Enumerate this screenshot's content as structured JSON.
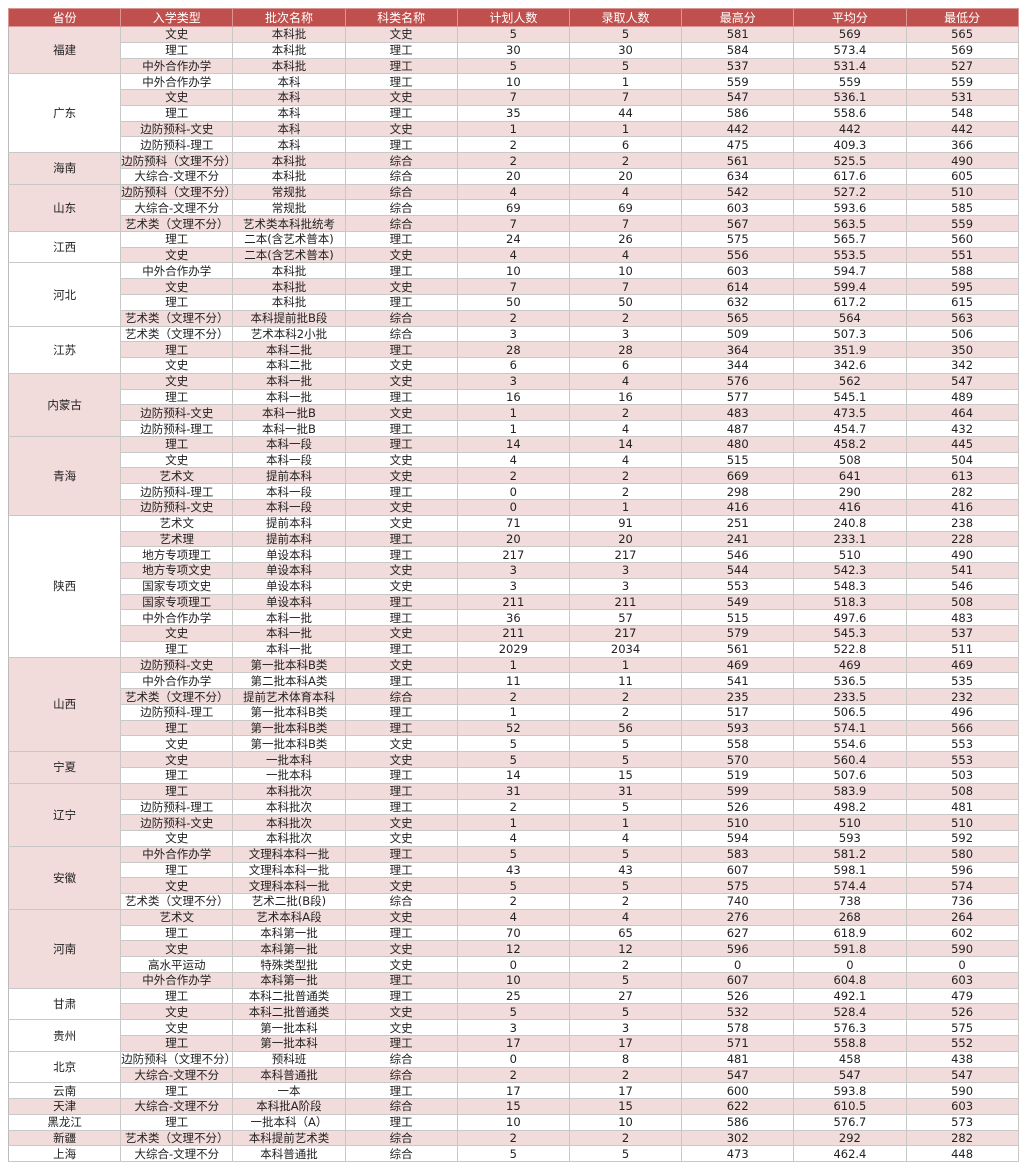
{
  "colors": {
    "header": "#c0504d",
    "stripe": "#f2dcdb"
  },
  "headers": [
    "省份",
    "入学类型",
    "批次名称",
    "科类名称",
    "计划人数",
    "录取人数",
    "最高分",
    "平均分",
    "最低分"
  ],
  "groups": [
    {
      "province": "福建",
      "rows": [
        [
          "文史",
          "本科批",
          "文史",
          "5",
          "5",
          "581",
          "569",
          "565"
        ],
        [
          "理工",
          "本科批",
          "理工",
          "30",
          "30",
          "584",
          "573.4",
          "569"
        ],
        [
          "中外合作办学",
          "本科批",
          "理工",
          "5",
          "5",
          "537",
          "531.4",
          "527"
        ]
      ]
    },
    {
      "province": "广东",
      "rows": [
        [
          "中外合作办学",
          "本科",
          "理工",
          "10",
          "1",
          "559",
          "559",
          "559"
        ],
        [
          "文史",
          "本科",
          "文史",
          "7",
          "7",
          "547",
          "536.1",
          "531"
        ],
        [
          "理工",
          "本科",
          "理工",
          "35",
          "44",
          "586",
          "558.6",
          "548"
        ],
        [
          "边防预科-文史",
          "本科",
          "文史",
          "1",
          "1",
          "442",
          "442",
          "442"
        ],
        [
          "边防预科-理工",
          "本科",
          "理工",
          "2",
          "6",
          "475",
          "409.3",
          "366"
        ]
      ]
    },
    {
      "province": "海南",
      "rows": [
        [
          "边防预科（文理不分）",
          "本科批",
          "综合",
          "2",
          "2",
          "561",
          "525.5",
          "490"
        ],
        [
          "大综合-文理不分",
          "本科批",
          "综合",
          "20",
          "20",
          "634",
          "617.6",
          "605"
        ]
      ]
    },
    {
      "province": "山东",
      "rows": [
        [
          "边防预科（文理不分）",
          "常规批",
          "综合",
          "4",
          "4",
          "542",
          "527.2",
          "510"
        ],
        [
          "大综合-文理不分",
          "常规批",
          "综合",
          "69",
          "69",
          "603",
          "593.6",
          "585"
        ],
        [
          "艺术类（文理不分）",
          "艺术类本科批统考",
          "综合",
          "7",
          "7",
          "567",
          "563.5",
          "559"
        ]
      ]
    },
    {
      "province": "江西",
      "rows": [
        [
          "理工",
          "二本(含艺术普本)",
          "理工",
          "24",
          "26",
          "575",
          "565.7",
          "560"
        ],
        [
          "文史",
          "二本(含艺术普本)",
          "文史",
          "4",
          "4",
          "556",
          "553.5",
          "551"
        ]
      ]
    },
    {
      "province": "河北",
      "rows": [
        [
          "中外合作办学",
          "本科批",
          "理工",
          "10",
          "10",
          "603",
          "594.7",
          "588"
        ],
        [
          "文史",
          "本科批",
          "文史",
          "7",
          "7",
          "614",
          "599.4",
          "595"
        ],
        [
          "理工",
          "本科批",
          "理工",
          "50",
          "50",
          "632",
          "617.2",
          "615"
        ],
        [
          "艺术类（文理不分）",
          "本科提前批B段",
          "综合",
          "2",
          "2",
          "565",
          "564",
          "563"
        ]
      ]
    },
    {
      "province": "江苏",
      "rows": [
        [
          "艺术类（文理不分）",
          "艺术本科2小批",
          "综合",
          "3",
          "3",
          "509",
          "507.3",
          "506"
        ],
        [
          "理工",
          "本科二批",
          "理工",
          "28",
          "28",
          "364",
          "351.9",
          "350"
        ],
        [
          "文史",
          "本科二批",
          "文史",
          "6",
          "6",
          "344",
          "342.6",
          "342"
        ]
      ]
    },
    {
      "province": "内蒙古",
      "rows": [
        [
          "文史",
          "本科一批",
          "文史",
          "3",
          "4",
          "576",
          "562",
          "547"
        ],
        [
          "理工",
          "本科一批",
          "理工",
          "16",
          "16",
          "577",
          "545.1",
          "489"
        ],
        [
          "边防预科-文史",
          "本科一批B",
          "文史",
          "1",
          "2",
          "483",
          "473.5",
          "464"
        ],
        [
          "边防预科-理工",
          "本科一批B",
          "理工",
          "1",
          "4",
          "487",
          "454.7",
          "432"
        ]
      ]
    },
    {
      "province": "青海",
      "rows": [
        [
          "理工",
          "本科一段",
          "理工",
          "14",
          "14",
          "480",
          "458.2",
          "445"
        ],
        [
          "文史",
          "本科一段",
          "文史",
          "4",
          "4",
          "515",
          "508",
          "504"
        ],
        [
          "艺术文",
          "提前本科",
          "文史",
          "2",
          "2",
          "669",
          "641",
          "613"
        ],
        [
          "边防预科-理工",
          "本科一段",
          "理工",
          "0",
          "2",
          "298",
          "290",
          "282"
        ],
        [
          "边防预科-文史",
          "本科一段",
          "文史",
          "0",
          "1",
          "416",
          "416",
          "416"
        ]
      ]
    },
    {
      "province": "陕西",
      "rows": [
        [
          "艺术文",
          "提前本科",
          "文史",
          "71",
          "91",
          "251",
          "240.8",
          "238"
        ],
        [
          "艺术理",
          "提前本科",
          "理工",
          "20",
          "20",
          "241",
          "233.1",
          "228"
        ],
        [
          "地方专项理工",
          "单设本科",
          "理工",
          "217",
          "217",
          "546",
          "510",
          "490"
        ],
        [
          "地方专项文史",
          "单设本科",
          "文史",
          "3",
          "3",
          "544",
          "542.3",
          "541"
        ],
        [
          "国家专项文史",
          "单设本科",
          "文史",
          "3",
          "3",
          "553",
          "548.3",
          "546"
        ],
        [
          "国家专项理工",
          "单设本科",
          "理工",
          "211",
          "211",
          "549",
          "518.3",
          "508"
        ],
        [
          "中外合作办学",
          "本科一批",
          "理工",
          "36",
          "57",
          "515",
          "497.6",
          "483"
        ],
        [
          "文史",
          "本科一批",
          "文史",
          "211",
          "217",
          "579",
          "545.3",
          "537"
        ],
        [
          "理工",
          "本科一批",
          "理工",
          "2029",
          "2034",
          "561",
          "522.8",
          "511"
        ]
      ]
    },
    {
      "province": "山西",
      "rows": [
        [
          "边防预科-文史",
          "第一批本科B类",
          "文史",
          "1",
          "1",
          "469",
          "469",
          "469"
        ],
        [
          "中外合作办学",
          "第二批本科A类",
          "理工",
          "11",
          "11",
          "541",
          "536.5",
          "535"
        ],
        [
          "艺术类（文理不分）",
          "提前艺术体育本科",
          "综合",
          "2",
          "2",
          "235",
          "233.5",
          "232"
        ],
        [
          "边防预科-理工",
          "第一批本科B类",
          "理工",
          "1",
          "2",
          "517",
          "506.5",
          "496"
        ],
        [
          "理工",
          "第一批本科B类",
          "理工",
          "52",
          "56",
          "593",
          "574.1",
          "566"
        ],
        [
          "文史",
          "第一批本科B类",
          "文史",
          "5",
          "5",
          "558",
          "554.6",
          "553"
        ]
      ]
    },
    {
      "province": "宁夏",
      "rows": [
        [
          "文史",
          "一批本科",
          "文史",
          "5",
          "5",
          "570",
          "560.4",
          "553"
        ],
        [
          "理工",
          "一批本科",
          "理工",
          "14",
          "15",
          "519",
          "507.6",
          "503"
        ]
      ]
    },
    {
      "province": "辽宁",
      "rows": [
        [
          "理工",
          "本科批次",
          "理工",
          "31",
          "31",
          "599",
          "583.9",
          "508"
        ],
        [
          "边防预科-理工",
          "本科批次",
          "理工",
          "2",
          "5",
          "526",
          "498.2",
          "481"
        ],
        [
          "边防预科-文史",
          "本科批次",
          "文史",
          "1",
          "1",
          "510",
          "510",
          "510"
        ],
        [
          "文史",
          "本科批次",
          "文史",
          "4",
          "4",
          "594",
          "593",
          "592"
        ]
      ]
    },
    {
      "province": "安徽",
      "rows": [
        [
          "中外合作办学",
          "文理科本科一批",
          "理工",
          "5",
          "5",
          "583",
          "581.2",
          "580"
        ],
        [
          "理工",
          "文理科本科一批",
          "理工",
          "43",
          "43",
          "607",
          "598.1",
          "596"
        ],
        [
          "文史",
          "文理科本科一批",
          "文史",
          "5",
          "5",
          "575",
          "574.4",
          "574"
        ],
        [
          "艺术类（文理不分）",
          "艺术二批(B段)",
          "综合",
          "2",
          "2",
          "740",
          "738",
          "736"
        ]
      ]
    },
    {
      "province": "河南",
      "rows": [
        [
          "艺术文",
          "艺术本科A段",
          "文史",
          "4",
          "4",
          "276",
          "268",
          "264"
        ],
        [
          "理工",
          "本科第一批",
          "理工",
          "70",
          "65",
          "627",
          "618.9",
          "602"
        ],
        [
          "文史",
          "本科第一批",
          "文史",
          "12",
          "12",
          "596",
          "591.8",
          "590"
        ],
        [
          "高水平运动",
          "特殊类型批",
          "文史",
          "0",
          "2",
          "0",
          "0",
          "0"
        ],
        [
          "中外合作办学",
          "本科第一批",
          "理工",
          "10",
          "5",
          "607",
          "604.8",
          "603"
        ]
      ]
    },
    {
      "province": "甘肃",
      "rows": [
        [
          "理工",
          "本科二批普通类",
          "理工",
          "25",
          "27",
          "526",
          "492.1",
          "479"
        ],
        [
          "文史",
          "本科二批普通类",
          "文史",
          "5",
          "5",
          "532",
          "528.4",
          "526"
        ]
      ]
    },
    {
      "province": "贵州",
      "rows": [
        [
          "文史",
          "第一批本科",
          "文史",
          "3",
          "3",
          "578",
          "576.3",
          "575"
        ],
        [
          "理工",
          "第一批本科",
          "理工",
          "17",
          "17",
          "571",
          "558.8",
          "552"
        ]
      ]
    },
    {
      "province": "北京",
      "rows": [
        [
          "边防预科（文理不分）",
          "预科班",
          "综合",
          "0",
          "8",
          "481",
          "458",
          "438"
        ],
        [
          "大综合-文理不分",
          "本科普通批",
          "综合",
          "2",
          "2",
          "547",
          "547",
          "547"
        ]
      ]
    },
    {
      "province": "云南",
      "rows": [
        [
          "理工",
          "一本",
          "理工",
          "17",
          "17",
          "600",
          "593.8",
          "590"
        ]
      ]
    },
    {
      "province": "天津",
      "rows": [
        [
          "大综合-文理不分",
          "本科批A阶段",
          "综合",
          "15",
          "15",
          "622",
          "610.5",
          "603"
        ]
      ]
    },
    {
      "province": "黑龙江",
      "rows": [
        [
          "理工",
          "一批本科（A）",
          "理工",
          "10",
          "10",
          "586",
          "576.7",
          "573"
        ]
      ]
    },
    {
      "province": "新疆",
      "rows": [
        [
          "艺术类（文理不分）",
          "本科提前艺术类",
          "综合",
          "2",
          "2",
          "302",
          "292",
          "282"
        ]
      ]
    },
    {
      "province": "上海",
      "rows": [
        [
          "大综合-文理不分",
          "本科普通批",
          "综合",
          "5",
          "5",
          "473",
          "462.4",
          "448"
        ]
      ]
    }
  ]
}
